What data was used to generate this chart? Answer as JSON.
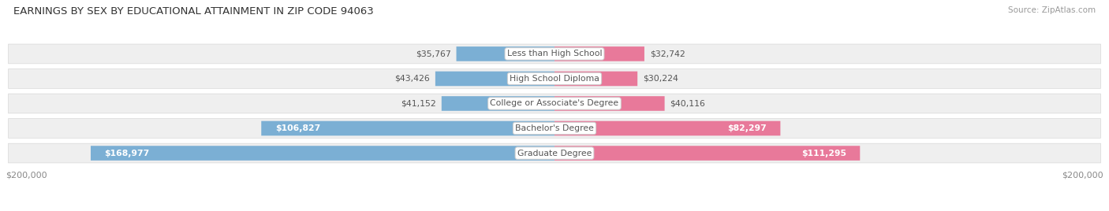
{
  "title": "EARNINGS BY SEX BY EDUCATIONAL ATTAINMENT IN ZIP CODE 94063",
  "source": "Source: ZipAtlas.com",
  "categories": [
    "Less than High School",
    "High School Diploma",
    "College or Associate's Degree",
    "Bachelor's Degree",
    "Graduate Degree"
  ],
  "male_values": [
    35767,
    43426,
    41152,
    106827,
    168977
  ],
  "female_values": [
    32742,
    30224,
    40116,
    82297,
    111295
  ],
  "male_labels": [
    "$35,767",
    "$43,426",
    "$41,152",
    "$106,827",
    "$168,977"
  ],
  "female_labels": [
    "$32,742",
    "$30,224",
    "$40,116",
    "$82,297",
    "$111,295"
  ],
  "max_value": 200000,
  "male_color": "#7bafd4",
  "female_color": "#e8799a",
  "row_bg_color": "#efefef",
  "row_sep_color": "#d8d8d8",
  "label_color": "#555555",
  "title_color": "#333333",
  "axis_label_color": "#888888",
  "legend_male_color": "#7bafd4",
  "legend_female_color": "#e8799a",
  "white": "#ffffff"
}
